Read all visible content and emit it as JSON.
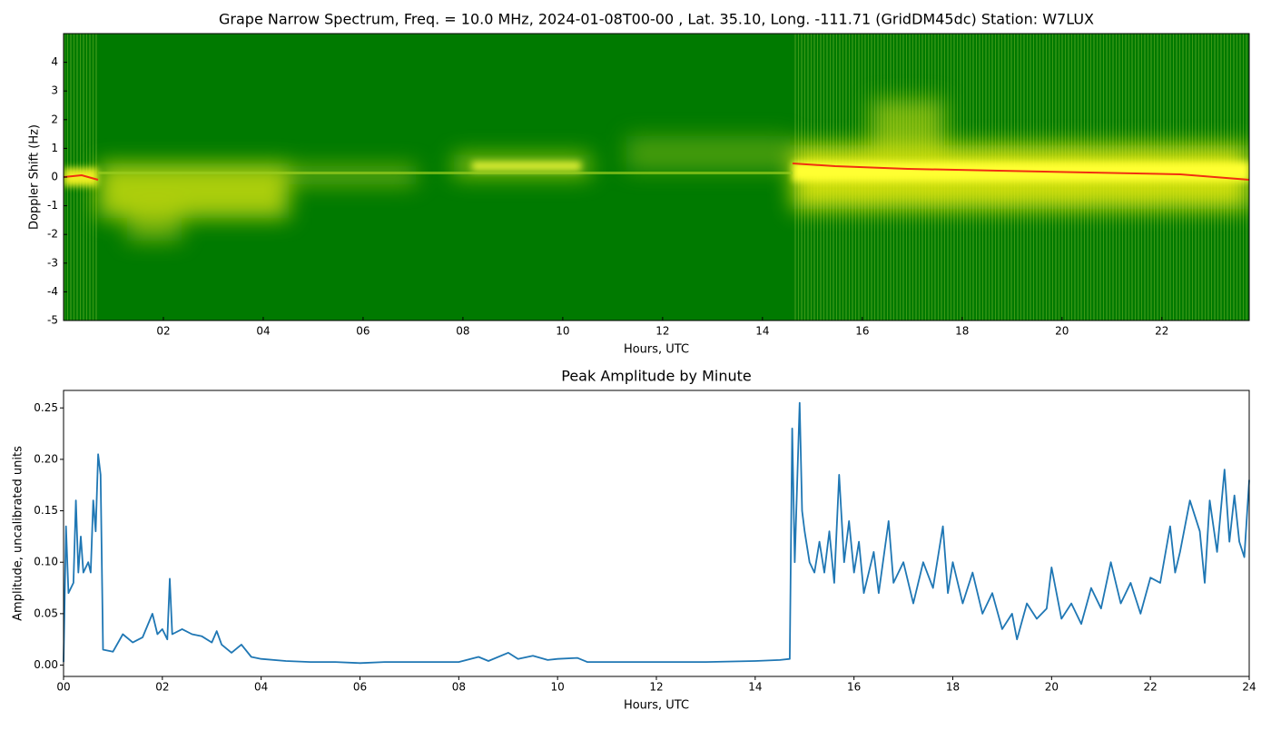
{
  "chart_data": [
    {
      "type": "spectrogram",
      "title": "Grape Narrow Spectrum, Freq. = 10.0 MHz, 2024-01-08T00-00 , Lat.  35.10, Long. -111.71 (GridDM45dc) Station: W7LUX",
      "x_label": "Hours, UTC",
      "y_label": "Doppler Shift (Hz)",
      "xlim": [
        0,
        23.75
      ],
      "xticks": [
        {
          "value": 2,
          "label": "02"
        },
        {
          "value": 4,
          "label": "04"
        },
        {
          "value": 6,
          "label": "06"
        },
        {
          "value": 8,
          "label": "08"
        },
        {
          "value": 10,
          "label": "10"
        },
        {
          "value": 12,
          "label": "12"
        },
        {
          "value": 14,
          "label": "14"
        },
        {
          "value": 16,
          "label": "16"
        },
        {
          "value": 18,
          "label": "18"
        },
        {
          "value": 20,
          "label": "20"
        },
        {
          "value": 22,
          "label": "22"
        }
      ],
      "ylim": [
        -5,
        5
      ],
      "yticks": [
        -5,
        -4,
        -3,
        -2,
        -1,
        0,
        1,
        2,
        3,
        4
      ]
    },
    {
      "type": "line",
      "title": "Peak Amplitude by Minute",
      "x_label": "Hours, UTC",
      "y_label": "Amplitude, uncalibrated units",
      "color": "#1f77b4",
      "xlim": [
        0,
        24
      ],
      "xticks": [
        {
          "value": 0,
          "label": "00"
        },
        {
          "value": 2,
          "label": "02"
        },
        {
          "value": 4,
          "label": "04"
        },
        {
          "value": 6,
          "label": "06"
        },
        {
          "value": 8,
          "label": "08"
        },
        {
          "value": 10,
          "label": "10"
        },
        {
          "value": 12,
          "label": "12"
        },
        {
          "value": 14,
          "label": "14"
        },
        {
          "value": 16,
          "label": "16"
        },
        {
          "value": 18,
          "label": "18"
        },
        {
          "value": 20,
          "label": "20"
        },
        {
          "value": 22,
          "label": "22"
        },
        {
          "value": 24,
          "label": "24"
        }
      ],
      "ylim": [
        -0.011,
        0.267
      ],
      "yticks": [
        {
          "value": 0,
          "label": "0.00"
        },
        0.05,
        {
          "value": 0.1,
          "label": "0.10"
        },
        0.15,
        {
          "value": 0.2,
          "label": "0.20"
        },
        0.25
      ],
      "x": [
        0,
        0.05,
        0.1,
        0.2,
        0.25,
        0.3,
        0.35,
        0.4,
        0.5,
        0.55,
        0.6,
        0.65,
        0.7,
        0.75,
        0.8,
        1.0,
        1.2,
        1.4,
        1.6,
        1.8,
        1.9,
        2.0,
        2.1,
        2.15,
        2.2,
        2.4,
        2.6,
        2.8,
        3.0,
        3.1,
        3.2,
        3.4,
        3.6,
        3.8,
        4.0,
        4.5,
        5.0,
        5.5,
        6.0,
        6.5,
        7.0,
        7.5,
        8.0,
        8.4,
        8.6,
        9.0,
        9.2,
        9.5,
        9.8,
        10.0,
        10.4,
        10.6,
        11.0,
        12.0,
        13.0,
        14.0,
        14.5,
        14.7,
        14.75,
        14.8,
        14.9,
        14.95,
        15.0,
        15.1,
        15.2,
        15.3,
        15.4,
        15.5,
        15.6,
        15.7,
        15.8,
        15.9,
        16.0,
        16.1,
        16.2,
        16.4,
        16.5,
        16.7,
        16.8,
        17.0,
        17.2,
        17.4,
        17.6,
        17.8,
        17.9,
        18.0,
        18.2,
        18.4,
        18.6,
        18.8,
        19.0,
        19.2,
        19.3,
        19.5,
        19.7,
        19.9,
        20.0,
        20.2,
        20.4,
        20.6,
        20.8,
        21.0,
        21.2,
        21.4,
        21.6,
        21.8,
        22.0,
        22.2,
        22.4,
        22.5,
        22.6,
        22.8,
        23.0,
        23.1,
        23.2,
        23.35,
        23.5,
        23.6,
        23.7,
        23.8,
        23.9,
        24.0
      ],
      "values": [
        0.003,
        0.135,
        0.07,
        0.08,
        0.16,
        0.09,
        0.125,
        0.09,
        0.1,
        0.09,
        0.16,
        0.13,
        0.205,
        0.185,
        0.015,
        0.013,
        0.03,
        0.022,
        0.027,
        0.05,
        0.03,
        0.035,
        0.025,
        0.084,
        0.03,
        0.035,
        0.03,
        0.028,
        0.022,
        0.033,
        0.02,
        0.012,
        0.02,
        0.008,
        0.006,
        0.004,
        0.003,
        0.003,
        0.002,
        0.003,
        0.003,
        0.003,
        0.003,
        0.008,
        0.004,
        0.012,
        0.006,
        0.009,
        0.005,
        0.006,
        0.007,
        0.003,
        0.003,
        0.003,
        0.003,
        0.004,
        0.005,
        0.006,
        0.23,
        0.1,
        0.255,
        0.15,
        0.13,
        0.1,
        0.09,
        0.12,
        0.09,
        0.13,
        0.08,
        0.185,
        0.1,
        0.14,
        0.09,
        0.12,
        0.07,
        0.11,
        0.07,
        0.14,
        0.08,
        0.1,
        0.06,
        0.1,
        0.075,
        0.135,
        0.07,
        0.1,
        0.06,
        0.09,
        0.05,
        0.07,
        0.035,
        0.05,
        0.025,
        0.06,
        0.045,
        0.055,
        0.095,
        0.045,
        0.06,
        0.04,
        0.075,
        0.055,
        0.1,
        0.06,
        0.08,
        0.05,
        0.085,
        0.08,
        0.135,
        0.09,
        0.11,
        0.16,
        0.13,
        0.08,
        0.16,
        0.11,
        0.19,
        0.12,
        0.165,
        0.12,
        0.105,
        0.18
      ]
    }
  ]
}
